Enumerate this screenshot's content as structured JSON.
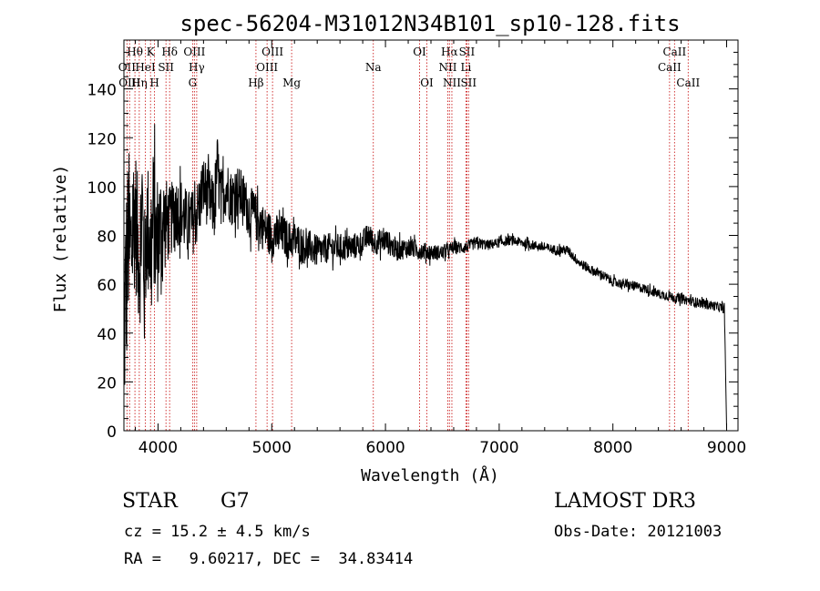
{
  "chart_data": {
    "type": "line",
    "title": "spec-56204-M31012N34B101_sp10-128.fits",
    "xlabel": "Wavelength (Å)",
    "ylabel": "Flux (relative)",
    "xlim": [
      3700,
      9100
    ],
    "ylim": [
      0,
      160
    ],
    "xticks": [
      4000,
      5000,
      6000,
      7000,
      8000,
      9000
    ],
    "yticks": [
      0,
      20,
      40,
      60,
      80,
      100,
      120,
      140
    ],
    "grid": false,
    "series": [
      {
        "name": "flux",
        "x": [
          3700,
          3720,
          3740,
          3760,
          3780,
          3800,
          3820,
          3840,
          3860,
          3880,
          3900,
          3920,
          3940,
          3960,
          3980,
          4000,
          4050,
          4100,
          4150,
          4200,
          4250,
          4300,
          4350,
          4400,
          4450,
          4500,
          4520,
          4550,
          4600,
          4650,
          4700,
          4750,
          4800,
          4850,
          4900,
          4950,
          5000,
          5050,
          5100,
          5150,
          5200,
          5250,
          5300,
          5350,
          5400,
          5450,
          5500,
          5600,
          5700,
          5800,
          5850,
          5900,
          6000,
          6100,
          6200,
          6300,
          6400,
          6500,
          6600,
          6700,
          6800,
          6900,
          7000,
          7100,
          7200,
          7300,
          7400,
          7500,
          7600,
          7700,
          7800,
          7900,
          8000,
          8100,
          8200,
          8300,
          8400,
          8500,
          8600,
          8700,
          8800,
          8900,
          8980,
          9000
        ],
        "values": [
          40,
          60,
          80,
          70,
          85,
          90,
          75,
          70,
          95,
          60,
          85,
          80,
          70,
          90,
          75,
          80,
          85,
          85,
          90,
          90,
          85,
          85,
          90,
          100,
          95,
          90,
          110,
          95,
          100,
          95,
          98,
          95,
          90,
          88,
          85,
          82,
          80,
          80,
          80,
          78,
          78,
          77,
          75,
          75,
          73,
          74,
          75,
          75,
          75,
          77,
          80,
          77,
          78,
          74,
          75,
          74,
          73,
          73,
          75,
          75,
          77,
          76,
          77,
          78,
          77,
          76,
          75,
          74,
          74,
          69,
          66,
          64,
          61,
          60,
          59,
          58,
          56,
          55,
          54,
          53,
          52,
          51,
          50,
          1
        ]
      }
    ],
    "noise_amplitude": [
      [
        3700,
        45
      ],
      [
        3800,
        30
      ],
      [
        4000,
        28
      ],
      [
        4100,
        15
      ],
      [
        4600,
        12
      ],
      [
        5000,
        9
      ],
      [
        5500,
        6
      ],
      [
        6000,
        5
      ],
      [
        6500,
        3
      ],
      [
        7000,
        2
      ],
      [
        8000,
        2
      ],
      [
        9000,
        2
      ]
    ],
    "line_markers": [
      {
        "label": "Hθ",
        "x": 3797,
        "row": 1
      },
      {
        "label": "OII",
        "x": 3727,
        "row": 2
      },
      {
        "label": "OIII",
        "x": 3750,
        "row": 3
      },
      {
        "label": "Hη",
        "x": 3835,
        "row": 3
      },
      {
        "label": "HeI",
        "x": 3889,
        "row": 2
      },
      {
        "label": "K",
        "x": 3934,
        "row": 1
      },
      {
        "label": "H",
        "x": 3969,
        "row": 3
      },
      {
        "label": "SII",
        "x": 4070,
        "row": 2
      },
      {
        "label": "Hδ",
        "x": 4102,
        "row": 1
      },
      {
        "label": "OIII",
        "x": 4320,
        "row": 1
      },
      {
        "label": "Hγ",
        "x": 4340,
        "row": 2
      },
      {
        "label": "G",
        "x": 4304,
        "row": 3
      },
      {
        "label": "Hβ",
        "x": 4861,
        "row": 3
      },
      {
        "label": "OIII",
        "x": 5007,
        "row": 1
      },
      {
        "label": "OIII",
        "x": 4959,
        "row": 2
      },
      {
        "label": "Mg",
        "x": 5175,
        "row": 3
      },
      {
        "label": "Na",
        "x": 5893,
        "row": 2
      },
      {
        "label": "OI",
        "x": 6300,
        "row": 1
      },
      {
        "label": "OI",
        "x": 6364,
        "row": 3
      },
      {
        "label": "Hα",
        "x": 6563,
        "row": 1
      },
      {
        "label": "NII",
        "x": 6548,
        "row": 2
      },
      {
        "label": "NII",
        "x": 6584,
        "row": 3
      },
      {
        "label": "SII",
        "x": 6716,
        "row": 1
      },
      {
        "label": "Li",
        "x": 6708,
        "row": 2
      },
      {
        "label": "SII",
        "x": 6731,
        "row": 3
      },
      {
        "label": "CaII",
        "x": 8542,
        "row": 1
      },
      {
        "label": "CaII",
        "x": 8498,
        "row": 2
      },
      {
        "label": "CaII",
        "x": 8662,
        "row": 3
      }
    ],
    "colors": {
      "line": "#000000",
      "marker": "#cc2222",
      "axis": "#000000"
    }
  },
  "info": {
    "object_type": "STAR",
    "subclass": "G7",
    "survey": "LAMOST DR3",
    "cz": "cz = 15.2 ± 4.5 km/s",
    "obs_date": "Obs-Date: 20121003",
    "coords": "RA =   9.60217, DEC =  34.83414"
  }
}
